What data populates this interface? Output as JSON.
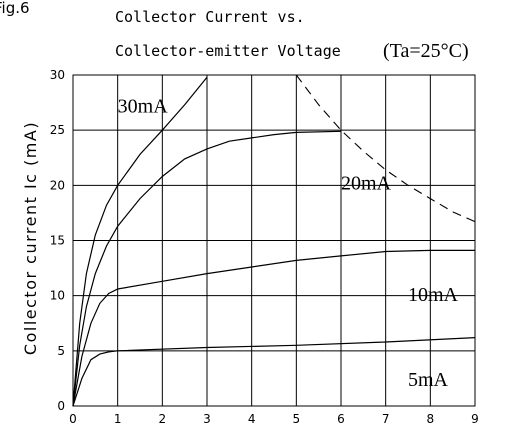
{
  "chart_data": {
    "type": "line",
    "figure_label": "Fig.6",
    "title_line1": "Collector Current vs.",
    "title_line2": "Collector-emitter Voltage",
    "condition": "(Ta=25°C)",
    "xlabel": "",
    "ylabel": "Collector current Ic (mA)",
    "xlim": [
      0,
      9
    ],
    "ylim": [
      0,
      30
    ],
    "x_ticks": [
      "0",
      "1",
      "2",
      "3",
      "4",
      "5",
      "6",
      "7",
      "8",
      "9"
    ],
    "y_ticks": [
      "0",
      "5",
      "10",
      "15",
      "20",
      "25",
      "30"
    ],
    "grid": true,
    "series": [
      {
        "name": "30mA",
        "label_at": [
          1.0,
          26.6
        ],
        "points": [
          [
            0,
            0
          ],
          [
            0.15,
            7.5
          ],
          [
            0.3,
            12.0
          ],
          [
            0.5,
            15.5
          ],
          [
            0.75,
            18.2
          ],
          [
            1.0,
            20.0
          ],
          [
            1.5,
            22.8
          ],
          [
            2.0,
            25.0
          ],
          [
            2.5,
            27.3
          ],
          [
            3.0,
            29.8
          ]
        ]
      },
      {
        "name": "20mA",
        "label_at": [
          6.0,
          19.6
        ],
        "points": [
          [
            0,
            0
          ],
          [
            0.15,
            5.5
          ],
          [
            0.3,
            9.0
          ],
          [
            0.5,
            12.0
          ],
          [
            0.75,
            14.5
          ],
          [
            1.0,
            16.3
          ],
          [
            1.5,
            18.8
          ],
          [
            2.0,
            20.8
          ],
          [
            2.5,
            22.4
          ],
          [
            3.0,
            23.3
          ],
          [
            3.5,
            24.0
          ],
          [
            4.0,
            24.3
          ],
          [
            4.5,
            24.6
          ],
          [
            5.0,
            24.8
          ],
          [
            6.0,
            24.9
          ]
        ]
      },
      {
        "name": "10mA",
        "label_at": [
          7.5,
          9.5
        ],
        "points": [
          [
            0,
            0
          ],
          [
            0.2,
            4.5
          ],
          [
            0.4,
            7.5
          ],
          [
            0.6,
            9.3
          ],
          [
            0.8,
            10.2
          ],
          [
            1.0,
            10.6
          ],
          [
            2.0,
            11.3
          ],
          [
            3.0,
            12.0
          ],
          [
            4.0,
            12.6
          ],
          [
            5.0,
            13.2
          ],
          [
            6.0,
            13.6
          ],
          [
            7.0,
            14.0
          ],
          [
            8.0,
            14.1
          ],
          [
            9.0,
            14.1
          ]
        ]
      },
      {
        "name": "5mA",
        "label_at": [
          7.5,
          1.8
        ],
        "points": [
          [
            0,
            0
          ],
          [
            0.2,
            2.5
          ],
          [
            0.4,
            4.2
          ],
          [
            0.6,
            4.7
          ],
          [
            0.8,
            4.9
          ],
          [
            1.0,
            5.0
          ],
          [
            3.0,
            5.3
          ],
          [
            5.0,
            5.5
          ],
          [
            7.0,
            5.8
          ],
          [
            9.0,
            6.2
          ]
        ]
      }
    ],
    "power_limit": {
      "style": "dashed",
      "points": [
        [
          5.0,
          30.0
        ],
        [
          5.5,
          27.3
        ],
        [
          6.0,
          25.0
        ],
        [
          6.5,
          23.1
        ],
        [
          7.0,
          21.4
        ],
        [
          7.5,
          20.0
        ],
        [
          8.0,
          18.8
        ],
        [
          8.5,
          17.6
        ],
        [
          9.0,
          16.7
        ]
      ]
    }
  }
}
